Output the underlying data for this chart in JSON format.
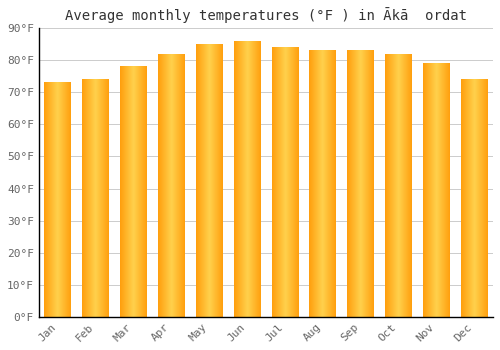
{
  "title": "Average monthly temperatures (°F ) in Ākā  ordat",
  "months": [
    "Jan",
    "Feb",
    "Mar",
    "Apr",
    "May",
    "Jun",
    "Jul",
    "Aug",
    "Sep",
    "Oct",
    "Nov",
    "Dec"
  ],
  "values": [
    73,
    74,
    78,
    82,
    85,
    86,
    84,
    83,
    83,
    82,
    79,
    74
  ],
  "ylim": [
    0,
    90
  ],
  "yticks": [
    0,
    10,
    20,
    30,
    40,
    50,
    60,
    70,
    80,
    90
  ],
  "ytick_labels": [
    "0°F",
    "10°F",
    "20°F",
    "30°F",
    "40°F",
    "50°F",
    "60°F",
    "70°F",
    "80°F",
    "90°F"
  ],
  "background_color": "#FFFFFF",
  "grid_color": "#CCCCCC",
  "title_fontsize": 10,
  "tick_fontsize": 8,
  "bar_color_light": "#FFD060",
  "bar_color_dark": "#FFA020",
  "bar_edge_color": "#E08800"
}
